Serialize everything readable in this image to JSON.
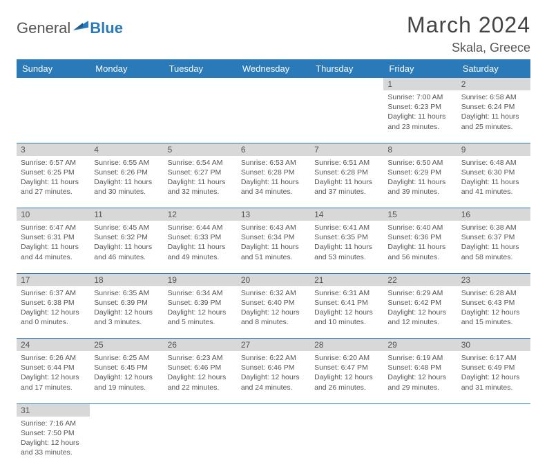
{
  "logo": {
    "general": "General",
    "blue": "Blue"
  },
  "title": "March 2024",
  "location": "Skala, Greece",
  "headers": [
    "Sunday",
    "Monday",
    "Tuesday",
    "Wednesday",
    "Thursday",
    "Friday",
    "Saturday"
  ],
  "colors": {
    "header_bg": "#2a7ab9",
    "header_fg": "#ffffff",
    "daynum_bg": "#d8d8d8",
    "row_border": "#2a7ab9",
    "text": "#555555",
    "logo_blue": "#2a7ab9"
  },
  "weeks": [
    [
      null,
      null,
      null,
      null,
      null,
      {
        "n": "1",
        "sr": "7:00 AM",
        "ss": "6:23 PM",
        "dl": "11 hours and 23 minutes."
      },
      {
        "n": "2",
        "sr": "6:58 AM",
        "ss": "6:24 PM",
        "dl": "11 hours and 25 minutes."
      }
    ],
    [
      {
        "n": "3",
        "sr": "6:57 AM",
        "ss": "6:25 PM",
        "dl": "11 hours and 27 minutes."
      },
      {
        "n": "4",
        "sr": "6:55 AM",
        "ss": "6:26 PM",
        "dl": "11 hours and 30 minutes."
      },
      {
        "n": "5",
        "sr": "6:54 AM",
        "ss": "6:27 PM",
        "dl": "11 hours and 32 minutes."
      },
      {
        "n": "6",
        "sr": "6:53 AM",
        "ss": "6:28 PM",
        "dl": "11 hours and 34 minutes."
      },
      {
        "n": "7",
        "sr": "6:51 AM",
        "ss": "6:28 PM",
        "dl": "11 hours and 37 minutes."
      },
      {
        "n": "8",
        "sr": "6:50 AM",
        "ss": "6:29 PM",
        "dl": "11 hours and 39 minutes."
      },
      {
        "n": "9",
        "sr": "6:48 AM",
        "ss": "6:30 PM",
        "dl": "11 hours and 41 minutes."
      }
    ],
    [
      {
        "n": "10",
        "sr": "6:47 AM",
        "ss": "6:31 PM",
        "dl": "11 hours and 44 minutes."
      },
      {
        "n": "11",
        "sr": "6:45 AM",
        "ss": "6:32 PM",
        "dl": "11 hours and 46 minutes."
      },
      {
        "n": "12",
        "sr": "6:44 AM",
        "ss": "6:33 PM",
        "dl": "11 hours and 49 minutes."
      },
      {
        "n": "13",
        "sr": "6:43 AM",
        "ss": "6:34 PM",
        "dl": "11 hours and 51 minutes."
      },
      {
        "n": "14",
        "sr": "6:41 AM",
        "ss": "6:35 PM",
        "dl": "11 hours and 53 minutes."
      },
      {
        "n": "15",
        "sr": "6:40 AM",
        "ss": "6:36 PM",
        "dl": "11 hours and 56 minutes."
      },
      {
        "n": "16",
        "sr": "6:38 AM",
        "ss": "6:37 PM",
        "dl": "11 hours and 58 minutes."
      }
    ],
    [
      {
        "n": "17",
        "sr": "6:37 AM",
        "ss": "6:38 PM",
        "dl": "12 hours and 0 minutes."
      },
      {
        "n": "18",
        "sr": "6:35 AM",
        "ss": "6:39 PM",
        "dl": "12 hours and 3 minutes."
      },
      {
        "n": "19",
        "sr": "6:34 AM",
        "ss": "6:39 PM",
        "dl": "12 hours and 5 minutes."
      },
      {
        "n": "20",
        "sr": "6:32 AM",
        "ss": "6:40 PM",
        "dl": "12 hours and 8 minutes."
      },
      {
        "n": "21",
        "sr": "6:31 AM",
        "ss": "6:41 PM",
        "dl": "12 hours and 10 minutes."
      },
      {
        "n": "22",
        "sr": "6:29 AM",
        "ss": "6:42 PM",
        "dl": "12 hours and 12 minutes."
      },
      {
        "n": "23",
        "sr": "6:28 AM",
        "ss": "6:43 PM",
        "dl": "12 hours and 15 minutes."
      }
    ],
    [
      {
        "n": "24",
        "sr": "6:26 AM",
        "ss": "6:44 PM",
        "dl": "12 hours and 17 minutes."
      },
      {
        "n": "25",
        "sr": "6:25 AM",
        "ss": "6:45 PM",
        "dl": "12 hours and 19 minutes."
      },
      {
        "n": "26",
        "sr": "6:23 AM",
        "ss": "6:46 PM",
        "dl": "12 hours and 22 minutes."
      },
      {
        "n": "27",
        "sr": "6:22 AM",
        "ss": "6:46 PM",
        "dl": "12 hours and 24 minutes."
      },
      {
        "n": "28",
        "sr": "6:20 AM",
        "ss": "6:47 PM",
        "dl": "12 hours and 26 minutes."
      },
      {
        "n": "29",
        "sr": "6:19 AM",
        "ss": "6:48 PM",
        "dl": "12 hours and 29 minutes."
      },
      {
        "n": "30",
        "sr": "6:17 AM",
        "ss": "6:49 PM",
        "dl": "12 hours and 31 minutes."
      }
    ],
    [
      {
        "n": "31",
        "sr": "7:16 AM",
        "ss": "7:50 PM",
        "dl": "12 hours and 33 minutes."
      },
      null,
      null,
      null,
      null,
      null,
      null
    ]
  ],
  "labels": {
    "sunrise": "Sunrise:",
    "sunset": "Sunset:",
    "daylight": "Daylight:"
  }
}
